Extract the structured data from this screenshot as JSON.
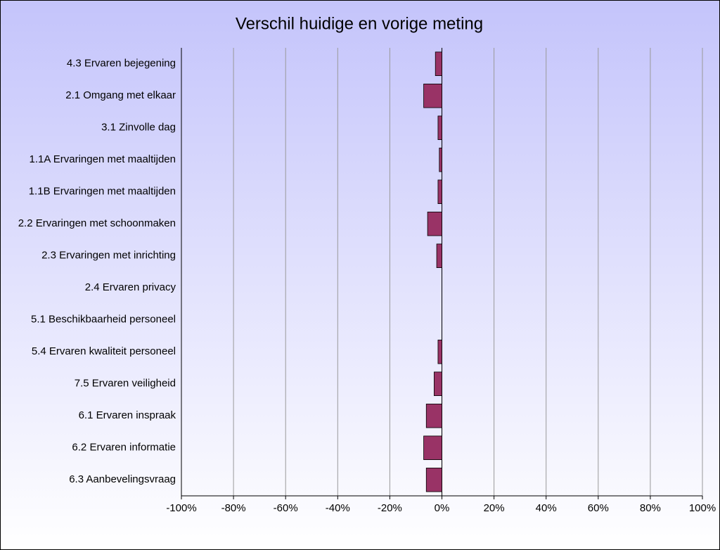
{
  "chart_data": {
    "type": "bar",
    "orientation": "horizontal",
    "title": "Verschil huidige en vorige meting",
    "categories": [
      "4.3 Ervaren bejegening",
      "2.1 Omgang met elkaar",
      "3.1 Zinvolle dag",
      "1.1A Ervaringen met maaltijden",
      "1.1B Ervaringen met maaltijden",
      "2.2 Ervaringen met schoonmaken",
      "2.3 Ervaringen met inrichting",
      "2.4 Ervaren privacy",
      "5.1 Beschikbaarheid personeel",
      "5.4 Ervaren kwaliteit personeel",
      "7.5 Ervaren veiligheid",
      "6.1 Ervaren inspraak",
      "6.2 Ervaren informatie",
      "6.3 Aanbevelingsvraag"
    ],
    "values": [
      -2.5,
      -7,
      -1.5,
      -1,
      -1.5,
      -5.5,
      -2,
      0,
      0,
      -1.5,
      -3,
      -6,
      -7,
      -6
    ],
    "color": "#993366",
    "xlim": [
      -100,
      100
    ],
    "xticks": [
      {
        "value": -100,
        "label": "-100%"
      },
      {
        "value": -80,
        "label": "-80%"
      },
      {
        "value": -60,
        "label": "-60%"
      },
      {
        "value": -40,
        "label": "-40%"
      },
      {
        "value": -20,
        "label": "-20%"
      },
      {
        "value": 0,
        "label": "0%"
      },
      {
        "value": 20,
        "label": "20%"
      },
      {
        "value": 40,
        "label": "40%"
      },
      {
        "value": 60,
        "label": "60%"
      },
      {
        "value": 80,
        "label": "80%"
      },
      {
        "value": 100,
        "label": "100%"
      }
    ],
    "grid": true
  }
}
